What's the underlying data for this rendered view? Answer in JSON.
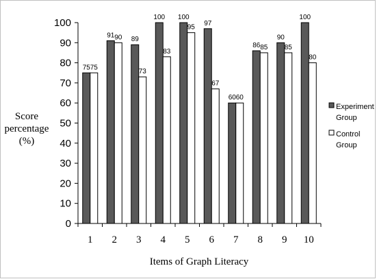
{
  "chart_data": {
    "type": "bar",
    "categories": [
      "1",
      "2",
      "3",
      "4",
      "5",
      "6",
      "7",
      "8",
      "9",
      "10"
    ],
    "series": [
      {
        "name_lines": [
          "Experiment",
          "Group"
        ],
        "color": "#595959",
        "values": [
          75,
          91,
          89,
          100,
          100,
          97,
          60,
          86,
          90,
          100
        ],
        "labels": [
          "75",
          "91",
          "89",
          "100",
          "100",
          "97",
          "60",
          "86",
          "90",
          "100"
        ]
      },
      {
        "name_lines": [
          "Control",
          "Group"
        ],
        "color": "#ffffff",
        "values": [
          75,
          90,
          73,
          83,
          95,
          67,
          60,
          85,
          85,
          80
        ],
        "labels": [
          "75",
          "90",
          "73",
          "83",
          "95",
          "67",
          "60",
          "85",
          "85",
          "80"
        ]
      }
    ],
    "ylabel_lines": [
      "Score",
      "percentage",
      "(%)"
    ],
    "xlabel": "Items of Graph Literacy",
    "ylim": [
      0,
      100
    ],
    "yticks": [
      "0",
      "10",
      "20",
      "30",
      "40",
      "50",
      "60",
      "70",
      "80",
      "90",
      "100"
    ],
    "grid": false,
    "legend_position": "right"
  }
}
